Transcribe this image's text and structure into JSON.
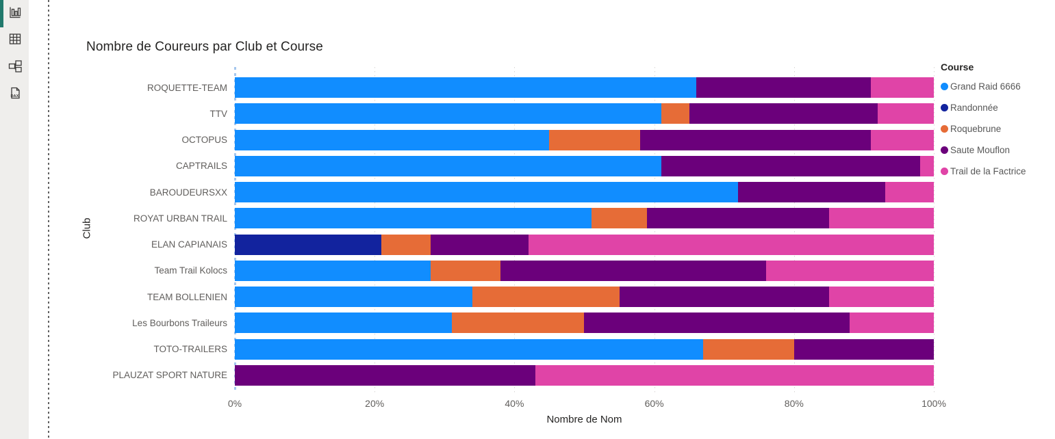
{
  "sidebar": {
    "active_indicator_color": "#21796c",
    "icons": [
      {
        "name": "report-view",
        "active": true
      },
      {
        "name": "data-table-view",
        "active": false
      },
      {
        "name": "model-view",
        "active": false
      },
      {
        "name": "dax-query-view",
        "active": false,
        "badge": "DAX"
      }
    ]
  },
  "chart_data": {
    "type": "bar",
    "stacked": true,
    "orientation": "horizontal",
    "normalized": "percent",
    "title": "Nombre de Coureurs par Club et Course",
    "xlabel": "Nombre de Nom",
    "ylabel": "Club",
    "legend_title": "Course",
    "legend_position": "top-right",
    "grid": "dotted-vertical",
    "xlim": [
      0,
      100
    ],
    "x_ticks": [
      "0%",
      "20%",
      "40%",
      "60%",
      "80%",
      "100%"
    ],
    "categories": [
      "ROQUETTE-TEAM",
      "TTV",
      "OCTOPUS",
      "CAPTRAILS",
      "BAROUDEURSXX",
      "ROYAT URBAN TRAIL",
      "ELAN CAPIANAIS",
      "Team Trail Kolocs",
      "TEAM BOLLENIEN",
      "Les Bourbons Traileurs",
      "TOTO-TRAILERS",
      "PLAUZAT SPORT NATURE"
    ],
    "series": [
      {
        "name": "Grand Raid 6666",
        "color": "#118DFF",
        "values": [
          66,
          61,
          45,
          61,
          72,
          51,
          0,
          28,
          34,
          31,
          67,
          0
        ]
      },
      {
        "name": "Randonnée",
        "color": "#12239E",
        "values": [
          0,
          0,
          0,
          0,
          0,
          0,
          21,
          0,
          0,
          0,
          0,
          0
        ]
      },
      {
        "name": "Roquebrune",
        "color": "#E66C37",
        "values": [
          0,
          4,
          13,
          0,
          0,
          8,
          7,
          10,
          21,
          19,
          13,
          0
        ]
      },
      {
        "name": "Saute Mouflon",
        "color": "#6B007B",
        "values": [
          25,
          27,
          33,
          37,
          21,
          26,
          14,
          38,
          30,
          38,
          20,
          43
        ]
      },
      {
        "name": "Trail de la Factrice",
        "color": "#E044A7",
        "values": [
          9,
          8,
          9,
          2,
          7,
          15,
          58,
          24,
          15,
          12,
          0,
          57
        ]
      }
    ]
  }
}
